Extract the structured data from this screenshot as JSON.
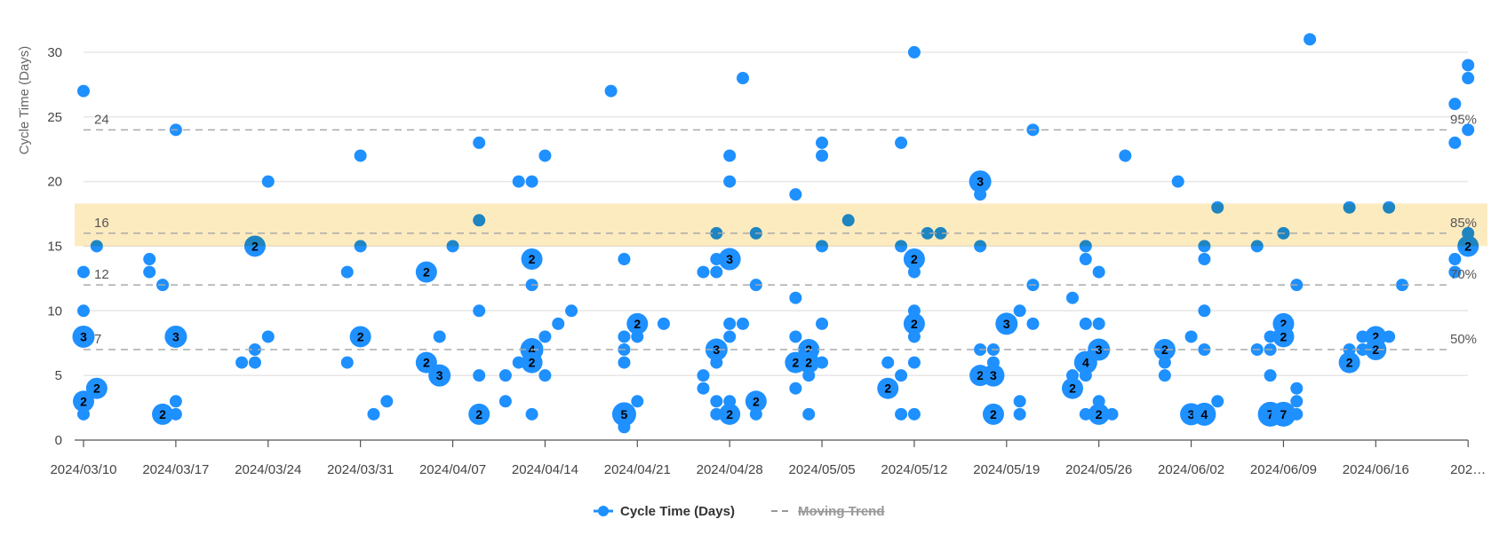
{
  "chart_data": {
    "type": "scatter",
    "ylabel": "Cycle Time (Days)",
    "xlabel": "",
    "ylim": [
      0,
      30
    ],
    "yticks": [
      0,
      5,
      10,
      15,
      20,
      25,
      30
    ],
    "xlim": [
      "2024-03-10",
      "2024-06-23"
    ],
    "xticks": [
      "2024/03/10",
      "2024/03/17",
      "2024/03/24",
      "2024/03/31",
      "2024/04/07",
      "2024/04/14",
      "2024/04/21",
      "2024/04/28",
      "2024/05/05",
      "2024/05/12",
      "2024/05/19",
      "2024/05/26",
      "2024/06/02",
      "2024/06/09",
      "2024/06/16",
      "202…"
    ],
    "grid": true,
    "legend_position": "bottom",
    "legend": [
      {
        "name": "Cycle Time (Days)",
        "color": "#1e90ff",
        "marker": "dot",
        "visible": true
      },
      {
        "name": "Moving Trend",
        "color": "#999999",
        "marker": "dash",
        "visible": false
      }
    ],
    "percentiles": [
      {
        "value": 24,
        "label": "95%",
        "value_label": "24"
      },
      {
        "value": 16,
        "label": "85%",
        "value_label": "16"
      },
      {
        "value": 12,
        "label": "70%",
        "value_label": "12"
      },
      {
        "value": 7,
        "label": "50%",
        "value_label": "7"
      }
    ],
    "highlight_band": {
      "from": 15,
      "to": 18.3,
      "color": "#fdebc0"
    },
    "point_color": "#1e90ff",
    "points_format": "[date, cycle_time_days, item_count]",
    "points": [
      [
        "2024-03-10",
        27,
        1
      ],
      [
        "2024-03-10",
        13,
        1
      ],
      [
        "2024-03-10",
        10,
        1
      ],
      [
        "2024-03-10",
        8,
        3
      ],
      [
        "2024-03-10",
        3,
        2
      ],
      [
        "2024-03-10",
        2,
        1
      ],
      [
        "2024-03-11",
        15,
        1
      ],
      [
        "2024-03-11",
        4,
        2
      ],
      [
        "2024-03-15",
        14,
        1
      ],
      [
        "2024-03-15",
        13,
        1
      ],
      [
        "2024-03-16",
        12,
        1
      ],
      [
        "2024-03-16",
        2,
        2
      ],
      [
        "2024-03-17",
        24,
        1
      ],
      [
        "2024-03-17",
        8,
        3
      ],
      [
        "2024-03-17",
        3,
        1
      ],
      [
        "2024-03-17",
        2,
        1
      ],
      [
        "2024-03-22",
        6,
        1
      ],
      [
        "2024-03-23",
        15,
        2
      ],
      [
        "2024-03-23",
        7,
        1
      ],
      [
        "2024-03-23",
        6,
        1
      ],
      [
        "2024-03-24",
        20,
        1
      ],
      [
        "2024-03-24",
        8,
        1
      ],
      [
        "2024-03-30",
        13,
        1
      ],
      [
        "2024-03-30",
        6,
        1
      ],
      [
        "2024-03-31",
        22,
        1
      ],
      [
        "2024-03-31",
        15,
        1
      ],
      [
        "2024-03-31",
        8,
        2
      ],
      [
        "2024-04-01",
        2,
        1
      ],
      [
        "2024-04-02",
        3,
        1
      ],
      [
        "2024-04-05",
        13,
        2
      ],
      [
        "2024-04-05",
        6,
        2
      ],
      [
        "2024-04-06",
        8,
        1
      ],
      [
        "2024-04-06",
        5,
        3
      ],
      [
        "2024-04-07",
        15,
        1
      ],
      [
        "2024-04-09",
        23,
        1
      ],
      [
        "2024-04-09",
        17,
        1
      ],
      [
        "2024-04-09",
        10,
        1
      ],
      [
        "2024-04-09",
        5,
        1
      ],
      [
        "2024-04-09",
        2,
        2
      ],
      [
        "2024-04-11",
        5,
        1
      ],
      [
        "2024-04-11",
        3,
        1
      ],
      [
        "2024-04-12",
        20,
        1
      ],
      [
        "2024-04-12",
        6,
        1
      ],
      [
        "2024-04-13",
        20,
        1
      ],
      [
        "2024-04-13",
        14,
        2
      ],
      [
        "2024-04-13",
        12,
        1
      ],
      [
        "2024-04-13",
        7,
        4
      ],
      [
        "2024-04-13",
        6,
        2
      ],
      [
        "2024-04-13",
        2,
        1
      ],
      [
        "2024-04-14",
        22,
        1
      ],
      [
        "2024-04-14",
        8,
        1
      ],
      [
        "2024-04-14",
        5,
        1
      ],
      [
        "2024-04-15",
        9,
        1
      ],
      [
        "2024-04-16",
        10,
        1
      ],
      [
        "2024-04-19",
        27,
        1
      ],
      [
        "2024-04-20",
        14,
        1
      ],
      [
        "2024-04-20",
        8,
        1
      ],
      [
        "2024-04-20",
        7,
        1
      ],
      [
        "2024-04-20",
        6,
        1
      ],
      [
        "2024-04-20",
        2,
        5
      ],
      [
        "2024-04-20",
        1,
        1
      ],
      [
        "2024-04-21",
        9,
        2
      ],
      [
        "2024-04-21",
        8,
        1
      ],
      [
        "2024-04-21",
        3,
        1
      ],
      [
        "2024-04-23",
        9,
        1
      ],
      [
        "2024-04-26",
        13,
        1
      ],
      [
        "2024-04-26",
        5,
        1
      ],
      [
        "2024-04-26",
        4,
        1
      ],
      [
        "2024-04-27",
        16,
        1
      ],
      [
        "2024-04-27",
        14,
        1
      ],
      [
        "2024-04-27",
        13,
        1
      ],
      [
        "2024-04-27",
        7,
        3
      ],
      [
        "2024-04-27",
        6,
        1
      ],
      [
        "2024-04-27",
        3,
        1
      ],
      [
        "2024-04-27",
        2,
        1
      ],
      [
        "2024-04-28",
        22,
        1
      ],
      [
        "2024-04-28",
        20,
        1
      ],
      [
        "2024-04-28",
        14,
        3
      ],
      [
        "2024-04-28",
        9,
        1
      ],
      [
        "2024-04-28",
        8,
        1
      ],
      [
        "2024-04-28",
        3,
        1
      ],
      [
        "2024-04-28",
        2,
        2
      ],
      [
        "2024-04-29",
        28,
        1
      ],
      [
        "2024-04-29",
        9,
        1
      ],
      [
        "2024-04-30",
        16,
        1
      ],
      [
        "2024-04-30",
        12,
        1
      ],
      [
        "2024-04-30",
        3,
        2
      ],
      [
        "2024-04-30",
        2,
        1
      ],
      [
        "2024-05-03",
        19,
        1
      ],
      [
        "2024-05-03",
        11,
        1
      ],
      [
        "2024-05-03",
        8,
        1
      ],
      [
        "2024-05-03",
        6,
        2
      ],
      [
        "2024-05-03",
        4,
        1
      ],
      [
        "2024-05-04",
        7,
        2
      ],
      [
        "2024-05-04",
        6,
        2
      ],
      [
        "2024-05-04",
        5,
        1
      ],
      [
        "2024-05-04",
        2,
        1
      ],
      [
        "2024-05-05",
        23,
        1
      ],
      [
        "2024-05-05",
        22,
        1
      ],
      [
        "2024-05-05",
        15,
        1
      ],
      [
        "2024-05-05",
        9,
        1
      ],
      [
        "2024-05-05",
        6,
        1
      ],
      [
        "2024-05-07",
        17,
        1
      ],
      [
        "2024-05-10",
        6,
        1
      ],
      [
        "2024-05-10",
        4,
        2
      ],
      [
        "2024-05-11",
        23,
        1
      ],
      [
        "2024-05-11",
        15,
        1
      ],
      [
        "2024-05-11",
        5,
        1
      ],
      [
        "2024-05-11",
        2,
        1
      ],
      [
        "2024-05-12",
        30,
        1
      ],
      [
        "2024-05-12",
        14,
        2
      ],
      [
        "2024-05-12",
        13,
        1
      ],
      [
        "2024-05-12",
        10,
        1
      ],
      [
        "2024-05-12",
        9,
        2
      ],
      [
        "2024-05-12",
        8,
        1
      ],
      [
        "2024-05-12",
        6,
        1
      ],
      [
        "2024-05-12",
        2,
        1
      ],
      [
        "2024-05-13",
        16,
        1
      ],
      [
        "2024-05-14",
        16,
        1
      ],
      [
        "2024-05-17",
        20,
        3
      ],
      [
        "2024-05-17",
        19,
        1
      ],
      [
        "2024-05-17",
        15,
        1
      ],
      [
        "2024-05-17",
        7,
        1
      ],
      [
        "2024-05-17",
        5,
        2
      ],
      [
        "2024-05-18",
        7,
        1
      ],
      [
        "2024-05-18",
        6,
        1
      ],
      [
        "2024-05-18",
        5,
        3
      ],
      [
        "2024-05-18",
        2,
        2
      ],
      [
        "2024-05-19",
        9,
        3
      ],
      [
        "2024-05-20",
        10,
        1
      ],
      [
        "2024-05-20",
        3,
        1
      ],
      [
        "2024-05-20",
        2,
        1
      ],
      [
        "2024-05-21",
        24,
        1
      ],
      [
        "2024-05-21",
        12,
        1
      ],
      [
        "2024-05-21",
        9,
        1
      ],
      [
        "2024-05-24",
        11,
        1
      ],
      [
        "2024-05-24",
        5,
        1
      ],
      [
        "2024-05-24",
        4,
        2
      ],
      [
        "2024-05-25",
        15,
        1
      ],
      [
        "2024-05-25",
        14,
        1
      ],
      [
        "2024-05-25",
        9,
        1
      ],
      [
        "2024-05-25",
        6,
        4
      ],
      [
        "2024-05-25",
        5,
        1
      ],
      [
        "2024-05-25",
        2,
        1
      ],
      [
        "2024-05-26",
        13,
        1
      ],
      [
        "2024-05-26",
        9,
        1
      ],
      [
        "2024-05-26",
        7,
        3
      ],
      [
        "2024-05-26",
        3,
        1
      ],
      [
        "2024-05-26",
        2,
        2
      ],
      [
        "2024-05-27",
        2,
        1
      ],
      [
        "2024-05-28",
        22,
        1
      ],
      [
        "2024-05-31",
        7,
        2
      ],
      [
        "2024-05-31",
        6,
        1
      ],
      [
        "2024-05-31",
        5,
        1
      ],
      [
        "2024-06-01",
        20,
        1
      ],
      [
        "2024-06-02",
        8,
        1
      ],
      [
        "2024-06-02",
        2,
        3
      ],
      [
        "2024-06-03",
        15,
        1
      ],
      [
        "2024-06-03",
        14,
        1
      ],
      [
        "2024-06-03",
        10,
        1
      ],
      [
        "2024-06-03",
        7,
        1
      ],
      [
        "2024-06-03",
        2,
        4
      ],
      [
        "2024-06-04",
        18,
        1
      ],
      [
        "2024-06-04",
        3,
        1
      ],
      [
        "2024-06-07",
        15,
        1
      ],
      [
        "2024-06-07",
        7,
        1
      ],
      [
        "2024-06-08",
        8,
        1
      ],
      [
        "2024-06-08",
        7,
        1
      ],
      [
        "2024-06-08",
        5,
        1
      ],
      [
        "2024-06-08",
        2,
        7
      ],
      [
        "2024-06-09",
        16,
        1
      ],
      [
        "2024-06-09",
        9,
        2
      ],
      [
        "2024-06-09",
        8,
        2
      ],
      [
        "2024-06-09",
        2,
        7
      ],
      [
        "2024-06-10",
        12,
        1
      ],
      [
        "2024-06-10",
        4,
        1
      ],
      [
        "2024-06-10",
        3,
        1
      ],
      [
        "2024-06-10",
        2,
        1
      ],
      [
        "2024-06-11",
        31,
        1
      ],
      [
        "2024-06-14",
        18,
        1
      ],
      [
        "2024-06-14",
        7,
        1
      ],
      [
        "2024-06-14",
        6,
        2
      ],
      [
        "2024-06-15",
        8,
        1
      ],
      [
        "2024-06-15",
        7,
        1
      ],
      [
        "2024-06-16",
        8,
        2
      ],
      [
        "2024-06-16",
        7,
        2
      ],
      [
        "2024-06-17",
        18,
        1
      ],
      [
        "2024-06-17",
        8,
        1
      ],
      [
        "2024-06-18",
        12,
        1
      ],
      [
        "2024-06-22",
        26,
        1
      ],
      [
        "2024-06-22",
        23,
        1
      ],
      [
        "2024-06-22",
        14,
        1
      ],
      [
        "2024-06-22",
        13,
        1
      ],
      [
        "2024-06-23",
        29,
        1
      ],
      [
        "2024-06-23",
        28,
        1
      ],
      [
        "2024-06-23",
        24,
        1
      ],
      [
        "2024-06-23",
        16,
        1
      ],
      [
        "2024-06-23",
        15,
        2
      ]
    ]
  }
}
